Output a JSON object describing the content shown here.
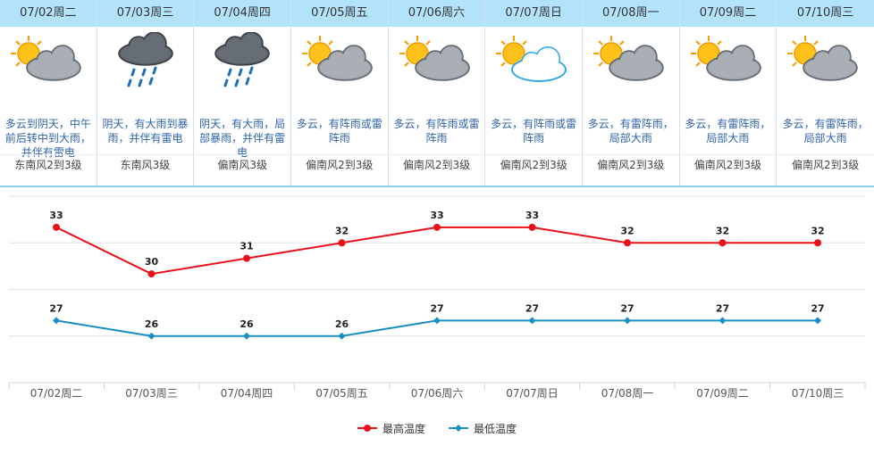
{
  "colors": {
    "header_bg": "#b3e3fb",
    "desc_text": "#2f63a8",
    "high_series": "#e8111a",
    "low_series": "#1a8fc4"
  },
  "days": [
    {
      "date": "07/02周二",
      "icon": "sun-cloud-icon",
      "desc": "多云到阴天，中午前后转中到大雨，并伴有雷电",
      "wind": "东南风2到3级"
    },
    {
      "date": "07/03周三",
      "icon": "heavy-rain-icon",
      "desc": "阴天，有大雨到暴雨，并伴有雷电",
      "wind": "东南风3级"
    },
    {
      "date": "07/04周四",
      "icon": "heavy-rain-icon",
      "desc": "阴天，有大雨，局部暴雨，并伴有雷电",
      "wind": "偏南风3级"
    },
    {
      "date": "07/05周五",
      "icon": "sun-cloud-icon",
      "desc": "多云，有阵雨或雷阵雨",
      "wind": "偏南风2到3级"
    },
    {
      "date": "07/06周六",
      "icon": "sun-cloud-icon",
      "desc": "多云，有阵雨或雷阵雨",
      "wind": "偏南风2到3级"
    },
    {
      "date": "07/07周日",
      "icon": "sun-white-cloud-icon",
      "desc": "多云，有阵雨或雷阵雨",
      "wind": "偏南风2到3级"
    },
    {
      "date": "07/08周一",
      "icon": "sun-cloud-icon",
      "desc": "多云，有雷阵雨，局部大雨",
      "wind": "偏南风2到3级"
    },
    {
      "date": "07/09周二",
      "icon": "sun-cloud-icon",
      "desc": "多云，有雷阵雨，局部大雨",
      "wind": "偏南风2到3级"
    },
    {
      "date": "07/10周三",
      "icon": "sun-cloud-icon",
      "desc": "多云，有雷阵雨，局部大雨",
      "wind": "偏南风2到3级"
    }
  ],
  "chart_data": {
    "type": "line",
    "categories": [
      "07/02周二",
      "07/03周三",
      "07/04周四",
      "07/05周五",
      "07/06周六",
      "07/07周日",
      "07/08周一",
      "07/09周二",
      "07/10周三"
    ],
    "series": [
      {
        "name": "最高温度",
        "values": [
          33,
          30,
          31,
          32,
          33,
          33,
          32,
          32,
          32
        ],
        "color": "#e8111a",
        "marker": "circle"
      },
      {
        "name": "最低温度",
        "values": [
          27,
          26,
          26,
          26,
          27,
          27,
          27,
          27,
          27
        ],
        "color": "#1a8fc4",
        "marker": "diamond"
      }
    ],
    "ylim": [
      23,
      35
    ],
    "grid": true,
    "data_labels": true,
    "legend": "bottom-center"
  }
}
